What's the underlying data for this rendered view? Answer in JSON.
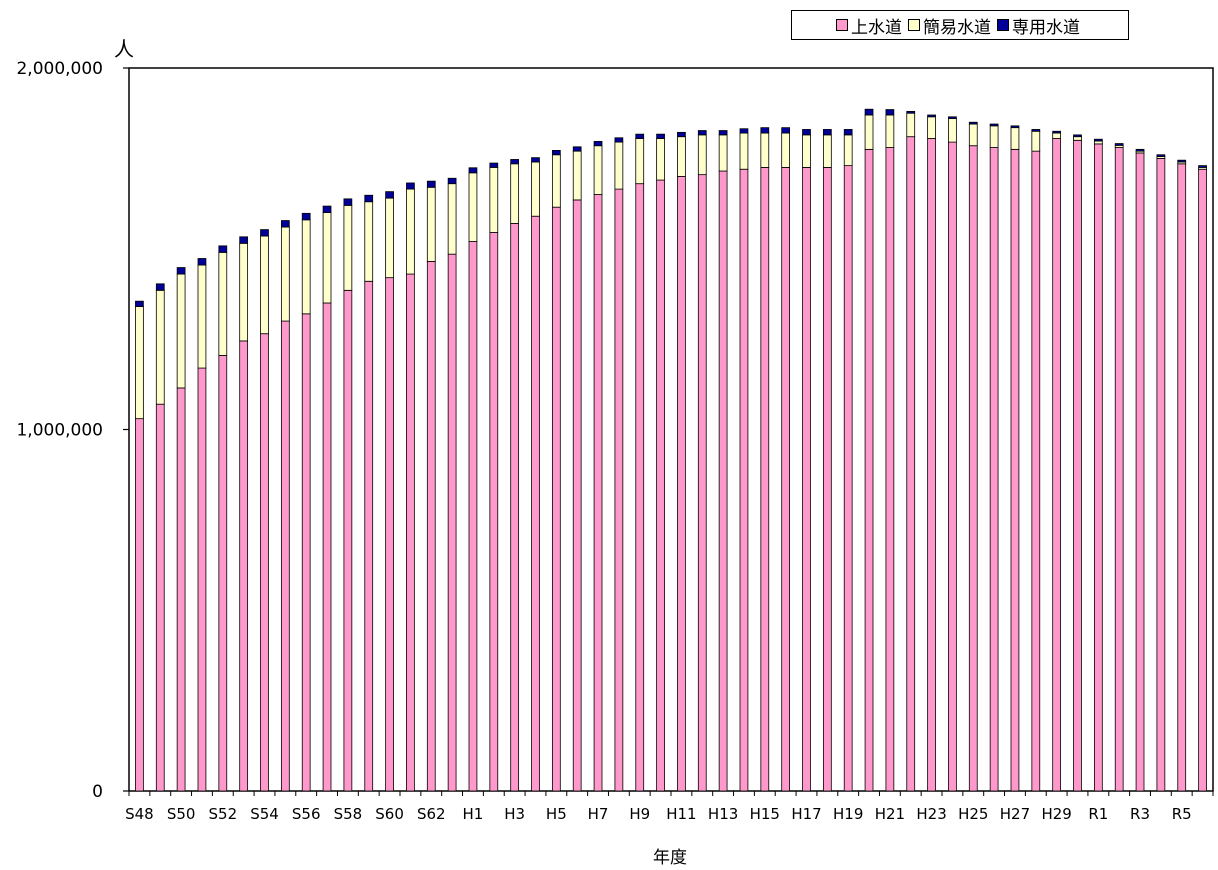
{
  "chart_data": {
    "type": "bar",
    "stacked": true,
    "title": "",
    "xlabel": "年度",
    "ylabel": "人",
    "ylim": [
      0,
      2000000
    ],
    "yticks": [
      "0",
      "1,000,000",
      "2,000,000"
    ],
    "ytick_values": [
      0,
      1000000,
      2000000
    ],
    "legend_position": "top-right",
    "categories": [
      "S48",
      "S49",
      "S50",
      "S51",
      "S52",
      "S53",
      "S54",
      "S55",
      "S56",
      "S57",
      "S58",
      "S59",
      "S60",
      "S61",
      "S62",
      "S63",
      "H1",
      "H2",
      "H3",
      "H4",
      "H5",
      "H6",
      "H7",
      "H8",
      "H9",
      "H10",
      "H11",
      "H12",
      "H13",
      "H14",
      "H15",
      "H16",
      "H17",
      "H18",
      "H19",
      "H20",
      "H21",
      "H22",
      "H23",
      "H24",
      "H25",
      "H26",
      "H27",
      "H28",
      "H29",
      "H30",
      "R1",
      "R2",
      "R3",
      "R4",
      "R5",
      "R6"
    ],
    "tick_labels": [
      "S48",
      "",
      "S50",
      "",
      "S52",
      "",
      "S54",
      "",
      "S56",
      "",
      "S58",
      "",
      "S60",
      "",
      "S62",
      "",
      "H1",
      "",
      "H3",
      "",
      "H5",
      "",
      "H7",
      "",
      "H9",
      "",
      "H11",
      "",
      "H13",
      "",
      "H15",
      "",
      "H17",
      "",
      "H19",
      "",
      "H21",
      "",
      "H23",
      "",
      "H25",
      "",
      "H27",
      "",
      "H29",
      "",
      "R1",
      "",
      "R3",
      "",
      "R5",
      ""
    ],
    "series": [
      {
        "name": "上水道",
        "color": "#ff99cc",
        "values": [
          1030000,
          1070000,
          1115000,
          1170000,
          1205000,
          1245000,
          1265000,
          1300000,
          1320000,
          1350000,
          1385000,
          1410000,
          1420000,
          1430000,
          1465000,
          1485000,
          1520000,
          1545000,
          1570000,
          1590000,
          1615000,
          1635000,
          1650000,
          1665000,
          1680000,
          1690000,
          1700000,
          1705000,
          1715000,
          1720000,
          1725000,
          1725000,
          1725000,
          1725000,
          1730000,
          1775000,
          1780000,
          1810000,
          1805000,
          1795000,
          1785000,
          1780000,
          1775000,
          1770000,
          1805000,
          1800000,
          1790000,
          1780000,
          1765000,
          1750000,
          1735000,
          1720000
        ]
      },
      {
        "name": "簡易水道",
        "color": "#ffffcc",
        "values": [
          310000,
          315000,
          315000,
          285000,
          285000,
          270000,
          270000,
          260000,
          260000,
          250000,
          235000,
          220000,
          220000,
          235000,
          205000,
          195000,
          190000,
          180000,
          165000,
          150000,
          145000,
          135000,
          135000,
          130000,
          125000,
          115000,
          110000,
          110000,
          100000,
          100000,
          95000,
          95000,
          90000,
          90000,
          85000,
          95000,
          90000,
          65000,
          60000,
          65000,
          60000,
          60000,
          60000,
          55000,
          15000,
          10000,
          8000,
          6000,
          5000,
          5000,
          5000,
          5000
        ]
      },
      {
        "name": "専用水道",
        "color": "#000099",
        "values": [
          15000,
          18000,
          18000,
          18000,
          18000,
          18000,
          18000,
          18000,
          18000,
          18000,
          18000,
          18000,
          18000,
          17000,
          17000,
          15000,
          14000,
          12000,
          12000,
          12000,
          12000,
          12000,
          12000,
          12000,
          12000,
          12000,
          12000,
          12000,
          12000,
          12000,
          15000,
          15000,
          15000,
          15000,
          15000,
          16000,
          15000,
          5000,
          5000,
          5000,
          5000,
          5000,
          5000,
          5000,
          5000,
          5000,
          5000,
          5000,
          5000,
          5000,
          5000,
          5000
        ]
      }
    ]
  }
}
